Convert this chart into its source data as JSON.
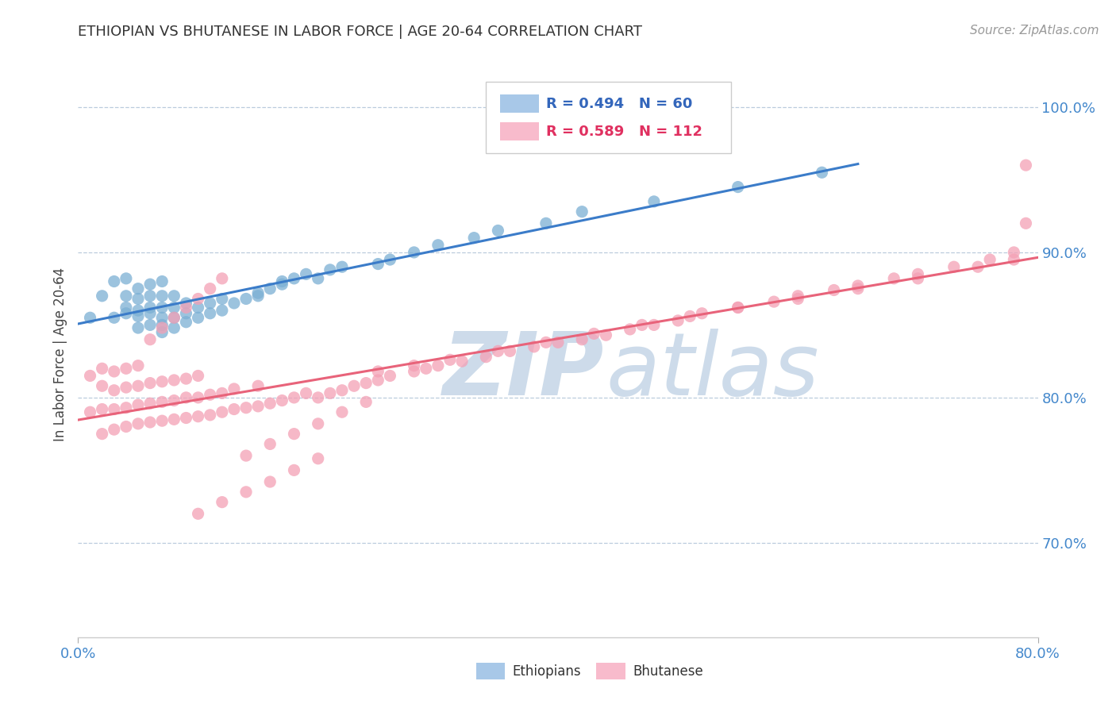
{
  "title": "ETHIOPIAN VS BHUTANESE IN LABOR FORCE | AGE 20-64 CORRELATION CHART",
  "source_text": "Source: ZipAtlas.com",
  "ylabel": "In Labor Force | Age 20-64",
  "right_yticks": [
    70.0,
    80.0,
    90.0,
    100.0
  ],
  "xmin": 0.0,
  "xmax": 0.8,
  "ymin": 0.635,
  "ymax": 1.025,
  "ethiopians_R": 0.494,
  "ethiopians_N": 60,
  "bhutanese_R": 0.589,
  "bhutanese_N": 112,
  "ethiopian_color": "#7BAFD4",
  "bhutanese_color": "#F4A0B5",
  "trendline_blue": "#3B7CC9",
  "trendline_pink": "#E8637A",
  "legend_box_color_eth": "#A8C8E8",
  "legend_box_color_bhu": "#F8BBCC",
  "background_color": "#FFFFFF",
  "ethiopians_x": [
    0.01,
    0.02,
    0.03,
    0.03,
    0.04,
    0.04,
    0.04,
    0.04,
    0.05,
    0.05,
    0.05,
    0.05,
    0.05,
    0.06,
    0.06,
    0.06,
    0.06,
    0.06,
    0.07,
    0.07,
    0.07,
    0.07,
    0.07,
    0.07,
    0.08,
    0.08,
    0.08,
    0.08,
    0.09,
    0.09,
    0.09,
    0.1,
    0.1,
    0.11,
    0.11,
    0.12,
    0.12,
    0.13,
    0.14,
    0.15,
    0.15,
    0.16,
    0.17,
    0.17,
    0.18,
    0.19,
    0.2,
    0.21,
    0.22,
    0.25,
    0.26,
    0.28,
    0.3,
    0.33,
    0.35,
    0.39,
    0.42,
    0.48,
    0.55,
    0.62
  ],
  "ethiopians_y": [
    0.855,
    0.87,
    0.855,
    0.88,
    0.858,
    0.862,
    0.87,
    0.882,
    0.848,
    0.856,
    0.86,
    0.868,
    0.875,
    0.85,
    0.858,
    0.862,
    0.87,
    0.878,
    0.845,
    0.85,
    0.855,
    0.862,
    0.87,
    0.88,
    0.848,
    0.855,
    0.862,
    0.87,
    0.852,
    0.858,
    0.865,
    0.855,
    0.862,
    0.858,
    0.865,
    0.86,
    0.868,
    0.865,
    0.868,
    0.87,
    0.872,
    0.875,
    0.878,
    0.88,
    0.882,
    0.885,
    0.882,
    0.888,
    0.89,
    0.892,
    0.895,
    0.9,
    0.905,
    0.91,
    0.915,
    0.92,
    0.928,
    0.935,
    0.945,
    0.955
  ],
  "bhutanese_x": [
    0.01,
    0.01,
    0.02,
    0.02,
    0.02,
    0.02,
    0.03,
    0.03,
    0.03,
    0.03,
    0.04,
    0.04,
    0.04,
    0.04,
    0.05,
    0.05,
    0.05,
    0.05,
    0.06,
    0.06,
    0.06,
    0.07,
    0.07,
    0.07,
    0.08,
    0.08,
    0.08,
    0.09,
    0.09,
    0.09,
    0.1,
    0.1,
    0.1,
    0.11,
    0.11,
    0.12,
    0.12,
    0.13,
    0.13,
    0.14,
    0.15,
    0.15,
    0.16,
    0.17,
    0.18,
    0.19,
    0.2,
    0.21,
    0.22,
    0.23,
    0.24,
    0.25,
    0.26,
    0.28,
    0.29,
    0.3,
    0.32,
    0.34,
    0.36,
    0.38,
    0.4,
    0.42,
    0.44,
    0.46,
    0.48,
    0.5,
    0.52,
    0.55,
    0.58,
    0.6,
    0.63,
    0.65,
    0.68,
    0.7,
    0.73,
    0.76,
    0.78,
    0.06,
    0.07,
    0.08,
    0.09,
    0.1,
    0.11,
    0.12,
    0.14,
    0.16,
    0.18,
    0.2,
    0.22,
    0.24,
    0.1,
    0.12,
    0.14,
    0.16,
    0.18,
    0.2,
    0.25,
    0.28,
    0.31,
    0.35,
    0.39,
    0.43,
    0.47,
    0.51,
    0.55,
    0.6,
    0.65,
    0.7,
    0.75,
    0.78,
    0.79,
    0.79
  ],
  "bhutanese_y": [
    0.79,
    0.815,
    0.775,
    0.792,
    0.808,
    0.82,
    0.778,
    0.792,
    0.805,
    0.818,
    0.78,
    0.793,
    0.807,
    0.82,
    0.782,
    0.795,
    0.808,
    0.822,
    0.783,
    0.796,
    0.81,
    0.784,
    0.797,
    0.811,
    0.785,
    0.798,
    0.812,
    0.786,
    0.8,
    0.813,
    0.787,
    0.8,
    0.815,
    0.788,
    0.802,
    0.79,
    0.803,
    0.792,
    0.806,
    0.793,
    0.794,
    0.808,
    0.796,
    0.798,
    0.8,
    0.803,
    0.8,
    0.803,
    0.805,
    0.808,
    0.81,
    0.812,
    0.815,
    0.818,
    0.82,
    0.822,
    0.825,
    0.828,
    0.832,
    0.835,
    0.838,
    0.84,
    0.843,
    0.847,
    0.85,
    0.853,
    0.858,
    0.862,
    0.866,
    0.87,
    0.874,
    0.877,
    0.882,
    0.885,
    0.89,
    0.895,
    0.9,
    0.84,
    0.848,
    0.855,
    0.862,
    0.868,
    0.875,
    0.882,
    0.76,
    0.768,
    0.775,
    0.782,
    0.79,
    0.797,
    0.72,
    0.728,
    0.735,
    0.742,
    0.75,
    0.758,
    0.818,
    0.822,
    0.826,
    0.832,
    0.838,
    0.844,
    0.85,
    0.856,
    0.862,
    0.868,
    0.875,
    0.882,
    0.89,
    0.895,
    0.92,
    0.96
  ]
}
